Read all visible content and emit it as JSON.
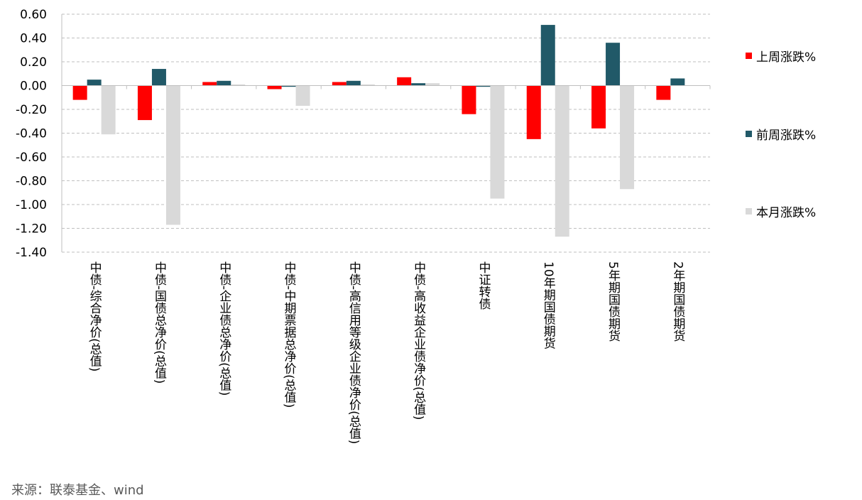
{
  "chart_data": {
    "type": "bar",
    "categories": [
      "中债-综合净价(总值)",
      "中债-国债总净价(总值)",
      "中债-企业债总净价(总值)",
      "中债-中期票据总净价(总值)",
      "中债-高信用等级企业债净价(总值)",
      "中债-高收益企业债净价(总值)",
      "中证转债",
      "10年期国债期货",
      "5年期国债期货",
      "2年期国债期货"
    ],
    "series": [
      {
        "name": "上周涨跌%",
        "color": "#ff0000",
        "values": [
          -0.12,
          -0.29,
          0.03,
          -0.03,
          0.03,
          0.07,
          -0.24,
          -0.45,
          -0.36,
          -0.12
        ]
      },
      {
        "name": "前周涨跌%",
        "color": "#215968",
        "values": [
          0.05,
          0.14,
          0.04,
          -0.01,
          0.04,
          0.02,
          -0.01,
          0.51,
          0.36,
          0.06
        ]
      },
      {
        "name": "本月涨跌%",
        "color": "#d9d9d9",
        "values": [
          -0.41,
          -1.17,
          0.01,
          -0.17,
          0.01,
          0.02,
          -0.95,
          -1.27,
          -0.87,
          null
        ]
      }
    ],
    "ylim": [
      -1.4,
      0.6
    ],
    "yticks": [
      "0.60",
      "0.40",
      "0.20",
      "0.00",
      "-0.20",
      "-0.40",
      "-0.60",
      "-0.80",
      "-1.00",
      "-1.20",
      "-1.40"
    ],
    "grid": true,
    "legend_position": "right"
  },
  "source_text": "来源：联泰基金、wind"
}
